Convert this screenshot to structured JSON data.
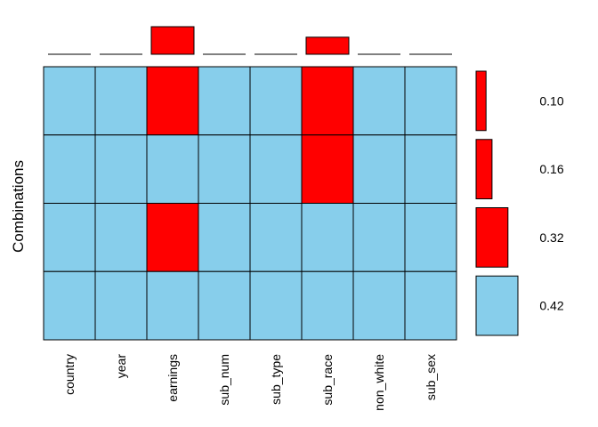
{
  "chart_data": {
    "type": "heatmap",
    "title": "",
    "ylabel": "Combinations",
    "variables": [
      "country",
      "year",
      "earnings",
      "sub_num",
      "sub_type",
      "sub_race",
      "non_white",
      "sub_sex"
    ],
    "missing_proportion_by_variable": [
      0.0,
      0.0,
      0.42,
      0.0,
      0.0,
      0.26,
      0.0,
      0.0
    ],
    "combinations": [
      {
        "pattern": [
          0,
          0,
          1,
          0,
          0,
          1,
          0,
          0
        ],
        "proportion": 0.1,
        "label": "0.10"
      },
      {
        "pattern": [
          0,
          0,
          0,
          0,
          0,
          1,
          0,
          0
        ],
        "proportion": 0.16,
        "label": "0.16"
      },
      {
        "pattern": [
          0,
          0,
          1,
          0,
          0,
          0,
          0,
          0
        ],
        "proportion": 0.32,
        "label": "0.32"
      },
      {
        "pattern": [
          0,
          0,
          0,
          0,
          0,
          0,
          0,
          0
        ],
        "proportion": 0.42,
        "label": "0.42"
      }
    ],
    "colors": {
      "observed": "#87CEEB",
      "missing": "#FF0000"
    }
  }
}
